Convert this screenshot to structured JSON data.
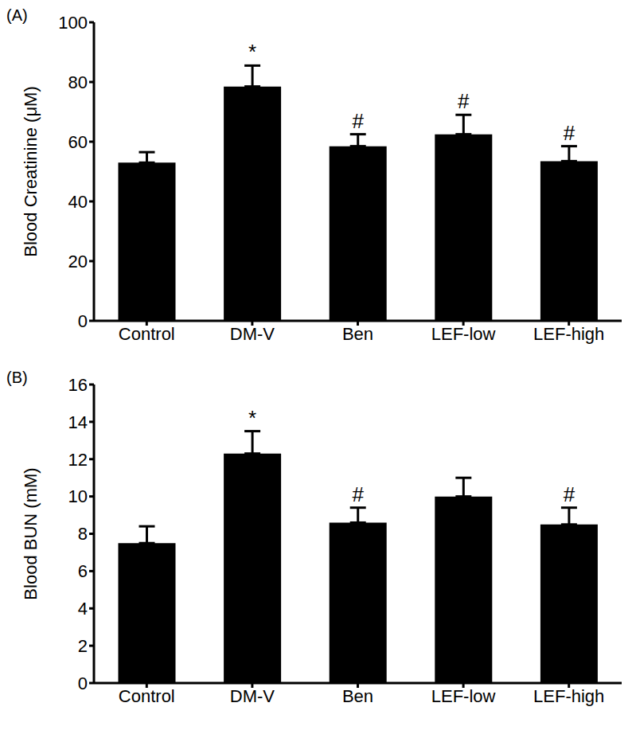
{
  "chart_data": [
    {
      "type": "bar",
      "title": "(A)",
      "y_label": "Blood Creatinine (μM)",
      "categories": [
        "Control",
        "DM-V",
        "Ben",
        "LEF-low",
        "LEF-high"
      ],
      "values": [
        53,
        78.5,
        58.5,
        62.5,
        53.5
      ],
      "errors": [
        3.5,
        7,
        4,
        6.5,
        5
      ],
      "annotations": [
        null,
        "*",
        "#",
        "#",
        "#"
      ],
      "color": "#000000",
      "ylim": [
        0,
        100
      ],
      "yticks": [
        0,
        20,
        40,
        60,
        80,
        100
      ],
      "grid": false
    },
    {
      "type": "bar",
      "title": "(B)",
      "y_label": "Blood BUN (mM)",
      "categories": [
        "Control",
        "DM-V",
        "Ben",
        "LEF-low",
        "LEF-high"
      ],
      "values": [
        7.5,
        12.3,
        8.6,
        10,
        8.5
      ],
      "errors": [
        0.9,
        1.2,
        0.8,
        1.0,
        0.9
      ],
      "annotations": [
        null,
        "*",
        "#",
        null,
        "#"
      ],
      "color": "#000000",
      "ylim": [
        0,
        16
      ],
      "yticks": [
        0,
        2,
        4,
        6,
        8,
        10,
        12,
        14,
        16
      ],
      "grid": false
    }
  ]
}
